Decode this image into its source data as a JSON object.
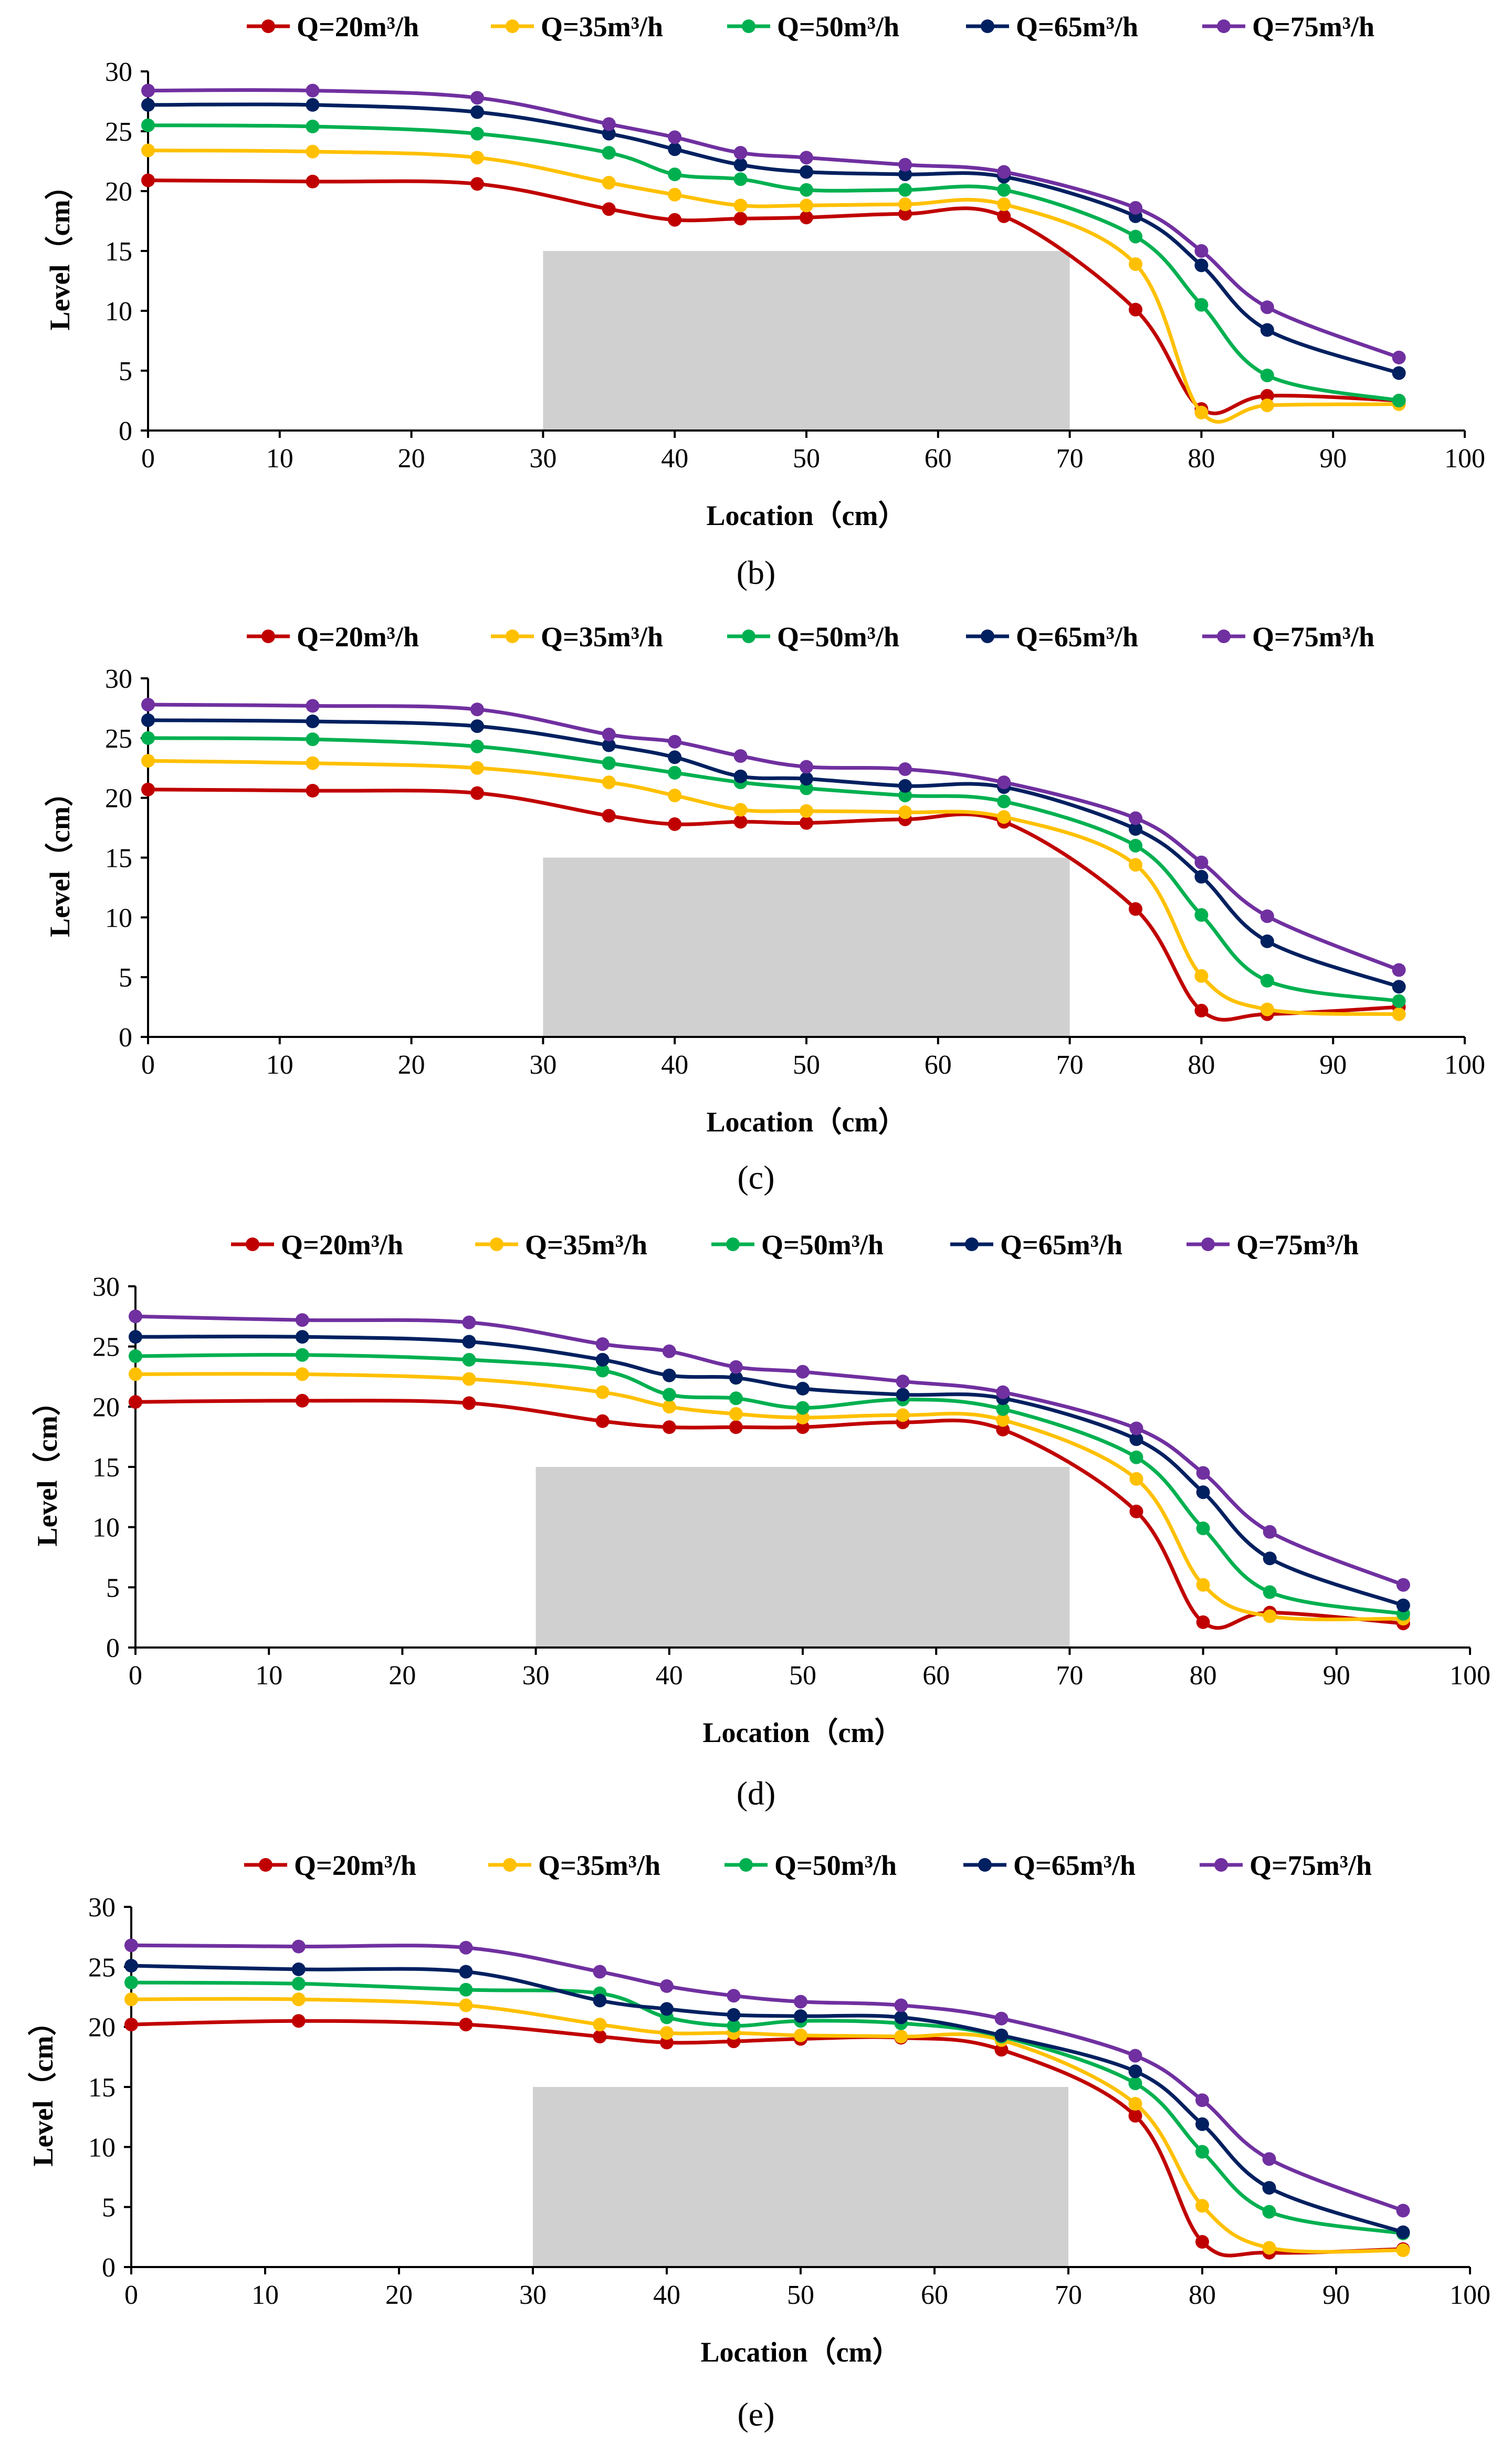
{
  "figure": {
    "panels": [
      {
        "label": "(b)"
      },
      {
        "label": "(c)"
      },
      {
        "label": "(d)"
      },
      {
        "label": "(e)"
      }
    ]
  },
  "chart_data": [
    {
      "panel": "(b)",
      "type": "line",
      "title": "",
      "xlabel": "Location（cm）",
      "ylabel": "Level（cm）",
      "xlim": [
        0,
        100
      ],
      "ylim": [
        0,
        30
      ],
      "xticks": [
        0,
        10,
        20,
        30,
        40,
        50,
        60,
        70,
        80,
        90,
        100
      ],
      "yticks": [
        0,
        5,
        10,
        15,
        20,
        25,
        30
      ],
      "x": [
        0,
        12.5,
        25,
        35,
        40,
        45,
        50,
        57.5,
        65,
        75,
        80,
        85,
        95
      ],
      "obstacle": {
        "x_start": 30,
        "x_end": 70,
        "height": 15,
        "color": "#d0d0d0"
      },
      "legend_position": "top",
      "series": [
        {
          "name": "Q=20m³/h",
          "color": "#c00000",
          "values": [
            20.9,
            20.8,
            20.6,
            18.5,
            17.6,
            17.7,
            17.8,
            18.1,
            17.9,
            10.1,
            1.8,
            2.9,
            2.5
          ]
        },
        {
          "name": "Q=35m³/h",
          "color": "#ffc000",
          "values": [
            23.4,
            23.3,
            22.8,
            20.7,
            19.7,
            18.8,
            18.8,
            18.9,
            18.9,
            13.9,
            1.5,
            2.1,
            2.2
          ]
        },
        {
          "name": "Q=50m³/h",
          "color": "#00b050",
          "values": [
            25.5,
            25.4,
            24.8,
            23.2,
            21.4,
            21.0,
            20.1,
            20.1,
            20.1,
            16.2,
            10.5,
            4.6,
            2.5
          ]
        },
        {
          "name": "Q=65m³/h",
          "color": "#002060",
          "values": [
            27.2,
            27.2,
            26.6,
            24.8,
            23.5,
            22.2,
            21.6,
            21.4,
            21.2,
            17.9,
            13.8,
            8.4,
            4.8
          ]
        },
        {
          "name": "Q=75m³/h",
          "color": "#7030a0",
          "values": [
            28.4,
            28.4,
            27.8,
            25.6,
            24.5,
            23.2,
            22.8,
            22.2,
            21.6,
            18.6,
            15.0,
            10.3,
            6.1
          ]
        }
      ]
    },
    {
      "panel": "(c)",
      "type": "line",
      "title": "",
      "xlabel": "Location（cm）",
      "ylabel": "Level（cm）",
      "xlim": [
        0,
        100
      ],
      "ylim": [
        0,
        30
      ],
      "xticks": [
        0,
        10,
        20,
        30,
        40,
        50,
        60,
        70,
        80,
        90,
        100
      ],
      "yticks": [
        0,
        5,
        10,
        15,
        20,
        25,
        30
      ],
      "x": [
        0,
        12.5,
        25,
        35,
        40,
        45,
        50,
        57.5,
        65,
        75,
        80,
        85,
        95
      ],
      "obstacle": {
        "x_start": 30,
        "x_end": 70,
        "height": 15,
        "color": "#d0d0d0"
      },
      "legend_position": "top",
      "series": [
        {
          "name": "Q=20m³/h",
          "color": "#c00000",
          "values": [
            20.7,
            20.6,
            20.4,
            18.5,
            17.8,
            18.0,
            17.9,
            18.2,
            18.0,
            10.7,
            2.2,
            1.9,
            2.5
          ]
        },
        {
          "name": "Q=35m³/h",
          "color": "#ffc000",
          "values": [
            23.1,
            22.9,
            22.5,
            21.3,
            20.2,
            19.0,
            18.9,
            18.8,
            18.4,
            14.4,
            5.1,
            2.3,
            1.9
          ]
        },
        {
          "name": "Q=50m³/h",
          "color": "#00b050",
          "values": [
            25.0,
            24.9,
            24.3,
            22.9,
            22.1,
            21.3,
            20.8,
            20.2,
            19.7,
            16.0,
            10.2,
            4.7,
            3.0
          ]
        },
        {
          "name": "Q=65m³/h",
          "color": "#002060",
          "values": [
            26.5,
            26.4,
            26.0,
            24.4,
            23.4,
            21.8,
            21.6,
            21.0,
            20.9,
            17.4,
            13.4,
            8.0,
            4.2
          ]
        },
        {
          "name": "Q=75m³/h",
          "color": "#7030a0",
          "values": [
            27.8,
            27.7,
            27.4,
            25.3,
            24.7,
            23.5,
            22.6,
            22.4,
            21.3,
            18.3,
            14.6,
            10.1,
            5.6
          ]
        }
      ]
    },
    {
      "panel": "(d)",
      "type": "line",
      "title": "",
      "xlabel": "Location（cm）",
      "ylabel": "Level（cm）",
      "xlim": [
        0,
        100
      ],
      "ylim": [
        0,
        30
      ],
      "xticks": [
        0,
        10,
        20,
        30,
        40,
        50,
        60,
        70,
        80,
        90,
        100
      ],
      "yticks": [
        0,
        5,
        10,
        15,
        20,
        25,
        30
      ],
      "x": [
        0,
        12.5,
        25,
        35,
        40,
        45,
        50,
        57.5,
        65,
        75,
        80,
        85,
        95
      ],
      "obstacle": {
        "x_start": 30,
        "x_end": 70,
        "height": 15,
        "color": "#d0d0d0"
      },
      "legend_position": "top",
      "series": [
        {
          "name": "Q=20m³/h",
          "color": "#c00000",
          "values": [
            20.4,
            20.5,
            20.3,
            18.8,
            18.3,
            18.3,
            18.3,
            18.7,
            18.1,
            11.3,
            2.1,
            2.9,
            2.0
          ]
        },
        {
          "name": "Q=35m³/h",
          "color": "#ffc000",
          "values": [
            22.7,
            22.7,
            22.3,
            21.2,
            20.0,
            19.4,
            19.1,
            19.3,
            18.9,
            14.0,
            5.2,
            2.6,
            2.4
          ]
        },
        {
          "name": "Q=50m³/h",
          "color": "#00b050",
          "values": [
            24.2,
            24.3,
            23.9,
            23.0,
            21.0,
            20.7,
            19.9,
            20.6,
            19.8,
            15.8,
            9.9,
            4.6,
            2.8
          ]
        },
        {
          "name": "Q=65m³/h",
          "color": "#002060",
          "values": [
            25.8,
            25.8,
            25.4,
            23.9,
            22.6,
            22.4,
            21.5,
            21.0,
            20.7,
            17.3,
            12.9,
            7.4,
            3.5
          ]
        },
        {
          "name": "Q=75m³/h",
          "color": "#7030a0",
          "values": [
            27.5,
            27.2,
            27.0,
            25.2,
            24.6,
            23.3,
            22.9,
            22.1,
            21.2,
            18.2,
            14.5,
            9.6,
            5.2
          ]
        }
      ]
    },
    {
      "panel": "(e)",
      "type": "line",
      "title": "",
      "xlabel": "Location（cm）",
      "ylabel": "Level（cm）",
      "xlim": [
        0,
        100
      ],
      "ylim": [
        0,
        30
      ],
      "xticks": [
        0,
        10,
        20,
        30,
        40,
        50,
        60,
        70,
        80,
        90,
        100
      ],
      "yticks": [
        0,
        5,
        10,
        15,
        20,
        25,
        30
      ],
      "x": [
        0,
        12.5,
        25,
        35,
        40,
        45,
        50,
        57.5,
        65,
        75,
        80,
        85,
        95
      ],
      "obstacle": {
        "x_start": 30,
        "x_end": 70,
        "height": 15,
        "color": "#d0d0d0"
      },
      "legend_position": "top",
      "series": [
        {
          "name": "Q=20m³/h",
          "color": "#c00000",
          "values": [
            20.2,
            20.5,
            20.2,
            19.2,
            18.7,
            18.8,
            19.0,
            19.1,
            18.1,
            12.6,
            2.1,
            1.2,
            1.5
          ]
        },
        {
          "name": "Q=35m³/h",
          "color": "#ffc000",
          "values": [
            22.3,
            22.3,
            21.8,
            20.2,
            19.5,
            19.5,
            19.3,
            19.2,
            18.9,
            13.6,
            5.1,
            1.6,
            1.4
          ]
        },
        {
          "name": "Q=50m³/h",
          "color": "#00b050",
          "values": [
            23.7,
            23.6,
            23.1,
            22.8,
            20.8,
            20.1,
            20.5,
            20.3,
            19.2,
            15.3,
            9.6,
            4.6,
            2.8
          ]
        },
        {
          "name": "Q=65m³/h",
          "color": "#002060",
          "values": [
            25.1,
            24.8,
            24.6,
            22.2,
            21.5,
            21.0,
            20.9,
            20.8,
            19.3,
            16.3,
            11.9,
            6.6,
            2.9
          ]
        },
        {
          "name": "Q=75m³/h",
          "color": "#7030a0",
          "values": [
            26.8,
            26.7,
            26.6,
            24.6,
            23.4,
            22.6,
            22.1,
            21.8,
            20.7,
            17.6,
            13.9,
            9.0,
            4.7
          ]
        }
      ]
    }
  ]
}
